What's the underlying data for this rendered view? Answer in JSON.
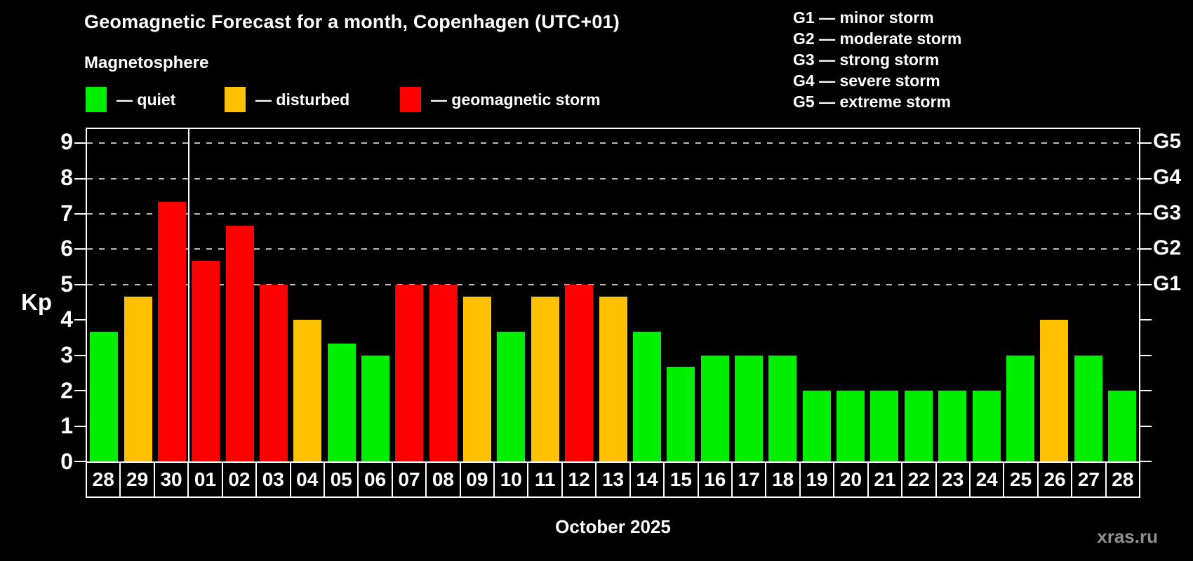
{
  "title": "Geomagnetic Forecast for a month, Copenhagen (UTC+01)",
  "subtitle": "Magnetosphere",
  "legend": {
    "quiet": "— quiet",
    "disturbed": "— disturbed",
    "storm": "— geomagnetic storm"
  },
  "g_scale_legend": [
    "G1 — minor storm",
    "G2 — moderate storm",
    "G3 — strong storm",
    "G4 — severe storm",
    "G5 — extreme storm"
  ],
  "colors": {
    "quiet": "#00ee00",
    "disturbed": "#ffc000",
    "storm": "#ff0000",
    "background": "#000000",
    "grid": "#b8b8b8",
    "axis": "#ffffff",
    "watermark": "#8f8f8f"
  },
  "axis": {
    "y_label": "Kp",
    "y_ticks": [
      0,
      1,
      2,
      3,
      4,
      5,
      6,
      7,
      8,
      9
    ],
    "right_labels": [
      "G1",
      "G2",
      "G3",
      "G4",
      "G5"
    ],
    "right_labels_at_kp": [
      5,
      6,
      7,
      8,
      9
    ],
    "x_label": "October 2025"
  },
  "watermark": "xras.ru",
  "chart_data": {
    "type": "bar",
    "title": "Geomagnetic Forecast for a month, Copenhagen (UTC+01)",
    "xlabel": "October 2025",
    "ylabel": "Kp",
    "ylim": [
      0,
      9.4
    ],
    "grid_at": [
      5,
      6,
      7,
      8,
      9
    ],
    "month_separator_after_index": 2,
    "categories": [
      "28",
      "29",
      "30",
      "01",
      "02",
      "03",
      "04",
      "05",
      "06",
      "07",
      "08",
      "09",
      "10",
      "11",
      "12",
      "13",
      "14",
      "15",
      "16",
      "17",
      "18",
      "19",
      "20",
      "21",
      "22",
      "23",
      "24",
      "25",
      "26",
      "27",
      "28"
    ],
    "values": [
      3.67,
      4.67,
      7.33,
      5.67,
      6.67,
      5.0,
      4.0,
      3.33,
      3.0,
      5.0,
      5.0,
      4.67,
      3.67,
      4.67,
      5.0,
      4.67,
      3.67,
      2.67,
      3.0,
      3.0,
      3.0,
      2.0,
      2.0,
      2.0,
      2.0,
      2.0,
      2.0,
      3.0,
      4.0,
      3.0,
      2.0
    ],
    "statuses": [
      "quiet",
      "disturbed",
      "storm",
      "storm",
      "storm",
      "storm",
      "disturbed",
      "quiet",
      "quiet",
      "storm",
      "storm",
      "disturbed",
      "quiet",
      "disturbed",
      "storm",
      "disturbed",
      "quiet",
      "quiet",
      "quiet",
      "quiet",
      "quiet",
      "quiet",
      "quiet",
      "quiet",
      "quiet",
      "quiet",
      "quiet",
      "quiet",
      "disturbed",
      "quiet",
      "quiet"
    ],
    "legend_entries": [
      {
        "label": "— quiet",
        "status": "quiet"
      },
      {
        "label": "— disturbed",
        "status": "disturbed"
      },
      {
        "label": "— geomagnetic storm",
        "status": "storm"
      }
    ]
  }
}
